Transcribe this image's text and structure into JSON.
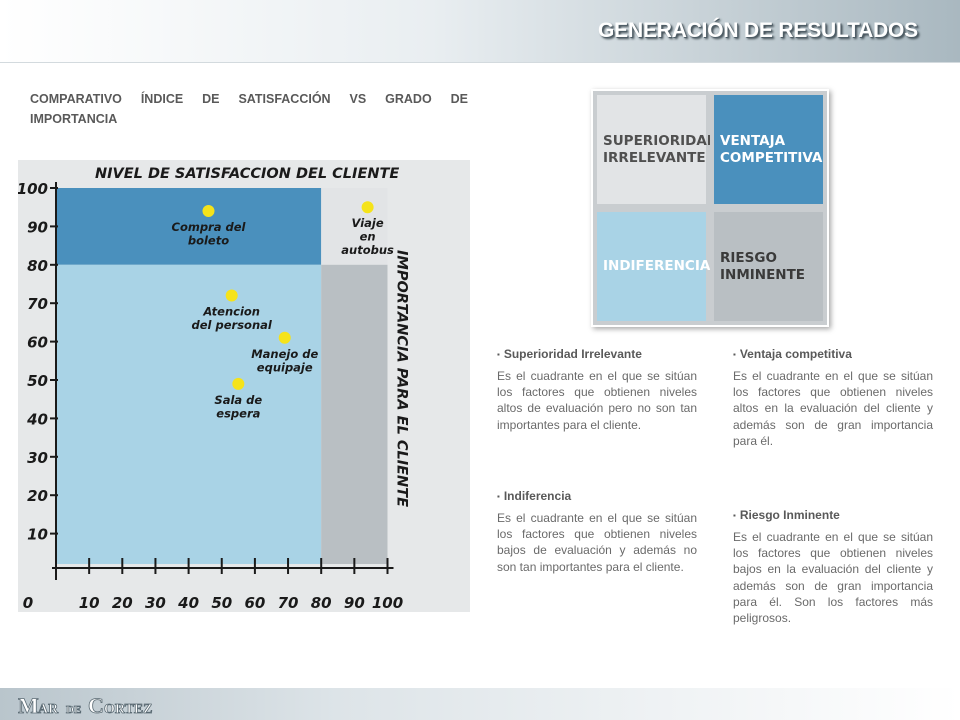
{
  "header": {
    "title": "GENERACIÓN DE RESULTADOS"
  },
  "subtitle": {
    "line1": "COMPARATIVO ÍNDICE DE SATISFACCIÓN VS GRADO DE",
    "line2": "IMPORTANCIA"
  },
  "chart_data": {
    "type": "scatter",
    "title": "NIVEL DE SATISFACCION DEL CLIENTE",
    "ylabel_right": "IMPORTANCIA PARA EL CLIENTE",
    "x_ticks": [
      "0",
      "10",
      "20",
      "30",
      "40",
      "50",
      "60",
      "70",
      "80",
      "90",
      "100"
    ],
    "y_ticks": [
      "100",
      "90",
      "80",
      "70",
      "60",
      "50",
      "40",
      "30",
      "20",
      "10"
    ],
    "xlim": [
      0,
      100
    ],
    "ylim": [
      0,
      100
    ],
    "threshold_x": 80,
    "threshold_y": 80,
    "colors": {
      "top_left": "#4a90bd",
      "top_right": "#e2e4e6",
      "bottom_left": "#a9d3e6",
      "bottom_right": "#b9bfc3",
      "point": "#f5e31a"
    },
    "points": [
      {
        "label": [
          "Compra del",
          "boleto"
        ],
        "x": 46,
        "y": 94
      },
      {
        "label": [
          "Viaje",
          "en",
          "autobus"
        ],
        "x": 94,
        "y": 95
      },
      {
        "label": [
          "Atencion",
          "del personal"
        ],
        "x": 53,
        "y": 72
      },
      {
        "label": [
          "Manejo de",
          "equipaje"
        ],
        "x": 69,
        "y": 61
      },
      {
        "label": [
          "Sala de",
          "espera"
        ],
        "x": 55,
        "y": 49
      }
    ]
  },
  "quadrants": {
    "top_left": "SUPERIORIDAD IRRELEVANTE",
    "top_right": "VENTAJA COMPETITIVA",
    "bottom_left": "INDIFERENCIA",
    "bottom_right": "RIESGO INMINENTE"
  },
  "blocks": [
    {
      "bullet": "▪",
      "title": "Superioridad Irrelevante",
      "body": "Es el cuadrante en el que se sitúan los factores que obtienen niveles altos de evaluación pero no son tan importantes para el cliente."
    },
    {
      "bullet": "▪",
      "title": "Indiferencia",
      "body": "Es el cuadrante en el que se sitúan los factores que obtienen niveles bajos de evaluación y además no son tan importantes para el cliente."
    },
    {
      "bullet": "▪",
      "title": "Ventaja competitiva",
      "body": "Es el cuadrante en el que se sitúan los factores que obtienen niveles altos en la evaluación del cliente y además son de gran importancia para él."
    },
    {
      "bullet": "▪",
      "title": "Riesgo Inminente",
      "body": "Es el cuadrante en el que se sitúan los factores que obtienen niveles bajos en la evaluación del cliente y además son de gran importancia para él. Son los factores más peligrosos."
    }
  ],
  "footer": {
    "logo_text": "MAR DE CORTEZ"
  }
}
